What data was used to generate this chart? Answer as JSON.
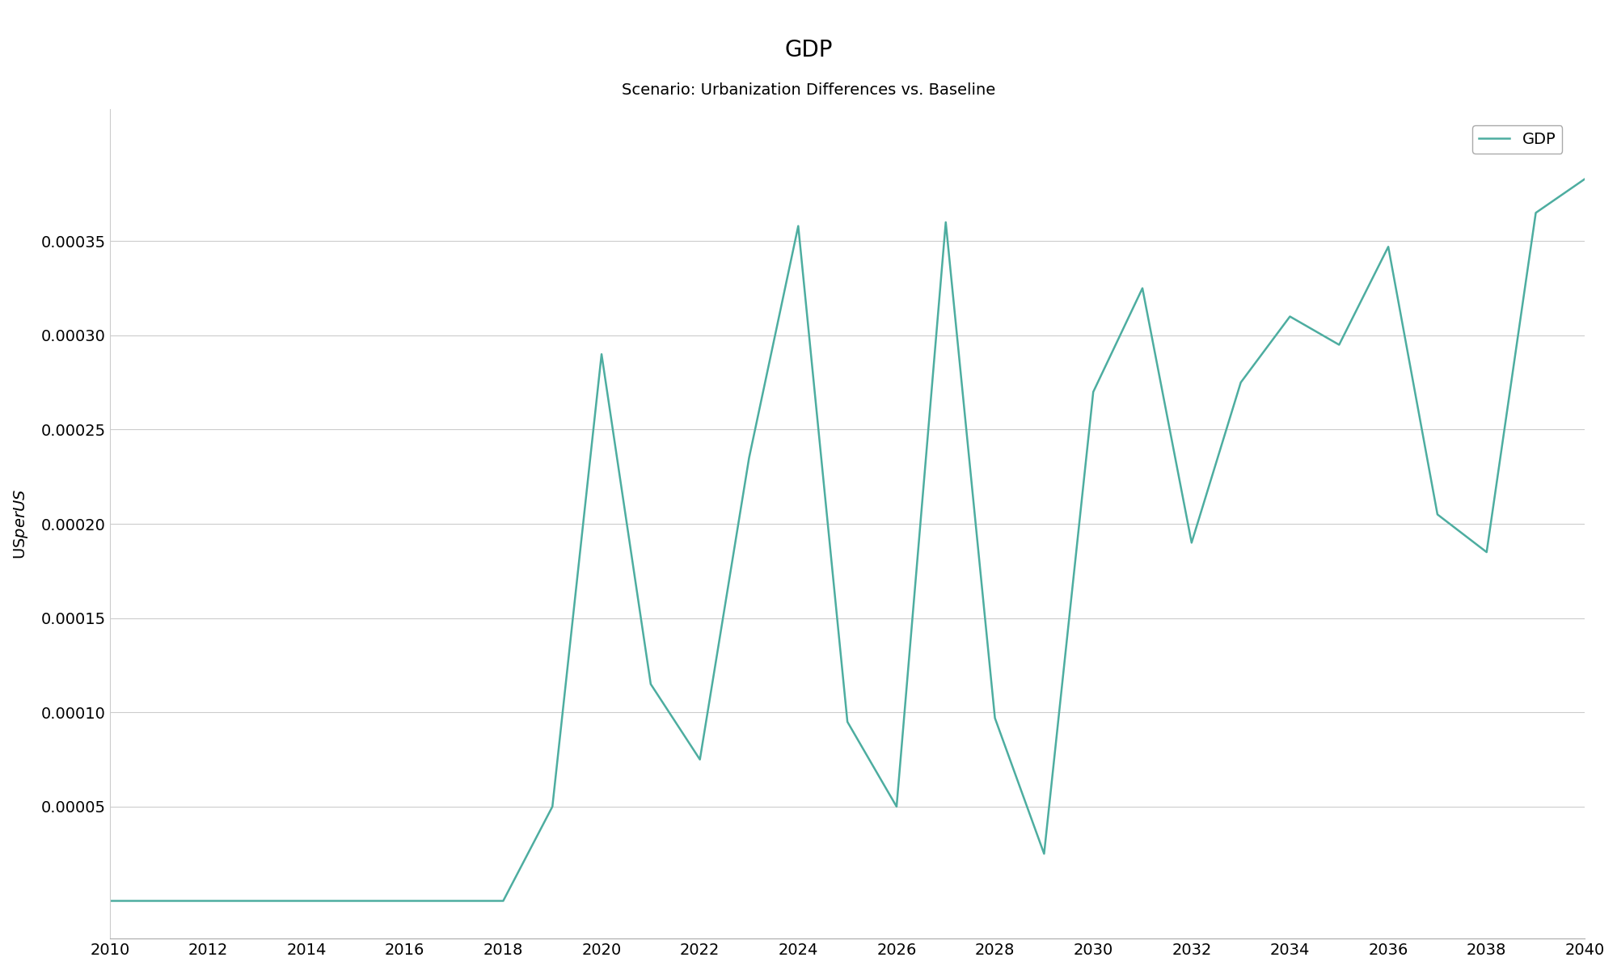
{
  "title": "GDP",
  "subtitle": "Scenario: Urbanization Differences vs. Baseline",
  "ylabel": "US$  per US$",
  "legend_label": "GDP",
  "line_color": "#4dada0",
  "background_color": "#ffffff",
  "plot_background_color": "#ffffff",
  "grid_color": "#cccccc",
  "xlim": [
    2010,
    2040
  ],
  "ylim": [
    -2e-05,
    0.00042
  ],
  "xticks": [
    2010,
    2012,
    2014,
    2016,
    2018,
    2020,
    2022,
    2024,
    2026,
    2028,
    2030,
    2032,
    2034,
    2036,
    2038,
    2040
  ],
  "yticks": [
    5e-05,
    0.0001,
    0.00015,
    0.0002,
    0.00025,
    0.0003,
    0.00035
  ],
  "years": [
    2010,
    2011,
    2012,
    2013,
    2014,
    2015,
    2016,
    2017,
    2018,
    2019,
    2020,
    2021,
    2022,
    2023,
    2024,
    2025,
    2026,
    2027,
    2028,
    2029,
    2030,
    2031,
    2032,
    2033,
    2034,
    2035,
    2036,
    2037,
    2038,
    2039,
    2040
  ],
  "values": [
    0.0,
    0.0,
    0.0,
    0.0,
    0.0,
    0.0,
    0.0,
    0.0,
    0.0,
    5e-05,
    0.00029,
    0.000115,
    7.5e-05,
    0.000235,
    0.000358,
    9.5e-05,
    5e-05,
    0.00036,
    9.7e-05,
    2.5e-05,
    0.00027,
    0.000325,
    0.00019,
    0.000275,
    0.00031,
    0.000295,
    0.000347,
    0.000205,
    0.000185,
    0.000365,
    0.000383
  ]
}
